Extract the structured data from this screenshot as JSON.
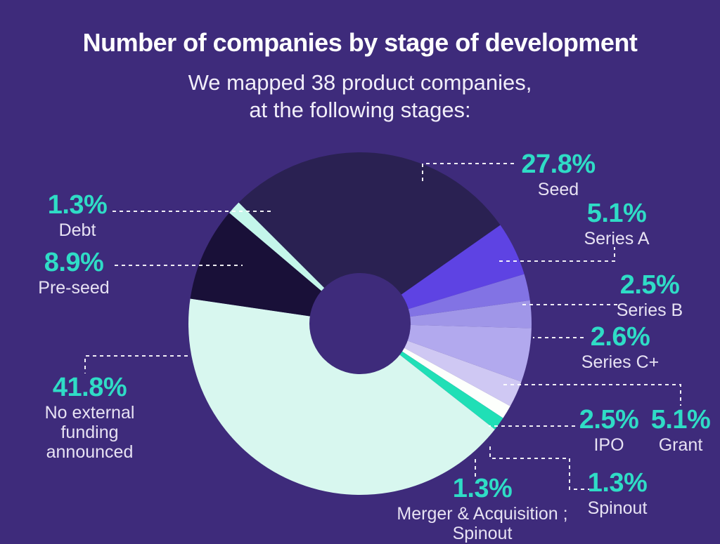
{
  "header": {
    "title": "Number of companies by stage of development",
    "subtitle_line1": "We mapped 38 product companies,",
    "subtitle_line2": "at the following stages:"
  },
  "colors": {
    "background": "#3e2b7b",
    "percent_text": "#2fdcc6",
    "label_text": "#e7e2f3",
    "leader_line": "#ffffff",
    "title_text": "#ffffff"
  },
  "chart_data": {
    "type": "pie",
    "title": "Number of companies by stage of development",
    "subtitle": "We mapped 38 product companies, at the following stages:",
    "total_companies": 38,
    "donut": true,
    "donut_hole_ratio": 0.295,
    "start_angle_deg": 315,
    "clockwise": true,
    "legend_position": "callouts-with-dashed-leader-lines",
    "grid": false,
    "series": [
      {
        "id": "seed",
        "label": "Seed",
        "value": 27.8,
        "color": "#2a2152"
      },
      {
        "id": "series-a",
        "label": "Series A",
        "value": 5.1,
        "color": "#5e43e3"
      },
      {
        "id": "series-b",
        "label": "Series B",
        "value": 2.5,
        "color": "#8273e4"
      },
      {
        "id": "series-c-plus",
        "label": "Series C+",
        "value": 2.6,
        "color": "#a096e8"
      },
      {
        "id": "grant",
        "label": "Grant",
        "value": 5.1,
        "color": "#b2a9ee"
      },
      {
        "id": "ipo",
        "label": "IPO",
        "value": 2.5,
        "color": "#cfc8f3"
      },
      {
        "id": "spinout",
        "label": "Spinout",
        "value": 1.3,
        "color": "#fdfffc"
      },
      {
        "id": "merger-acquisition-spinout",
        "label": "Merger & Acquisition ; Spinout",
        "value": 1.3,
        "color": "#20dfb6"
      },
      {
        "id": "no-external-funding",
        "label": "No external funding announced",
        "value": 41.8,
        "color": "#d8f7ef"
      },
      {
        "id": "pre-seed",
        "label": "Pre-seed",
        "value": 8.9,
        "color": "#191038"
      },
      {
        "id": "debt",
        "label": "Debt",
        "value": 1.3,
        "color": "#c4f6ea"
      }
    ]
  }
}
